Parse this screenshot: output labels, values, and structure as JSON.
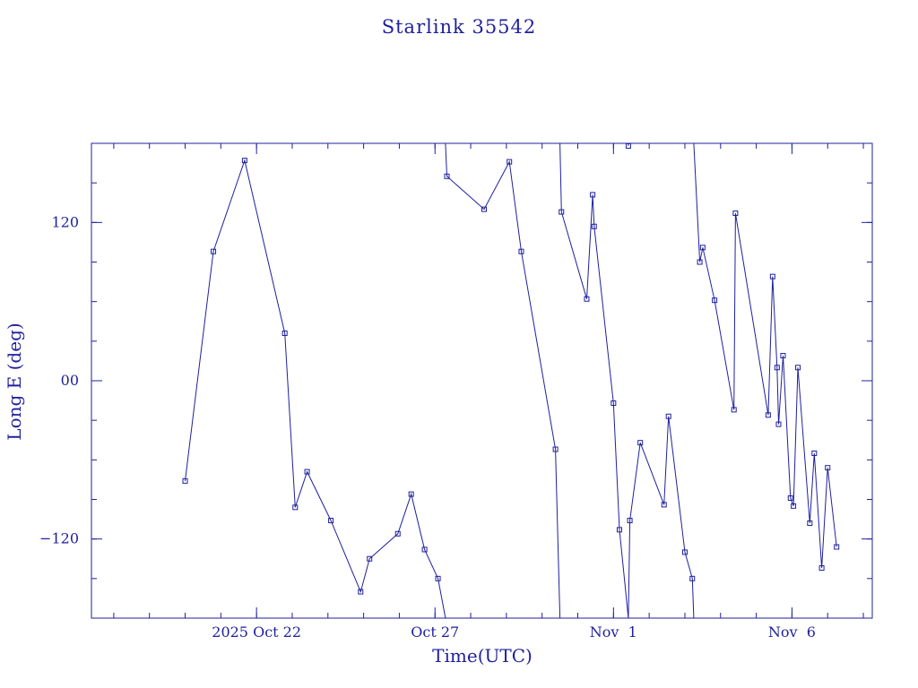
{
  "chart_data": {
    "type": "line",
    "title": "Starlink 35542",
    "xlabel": "Time(UTC)",
    "ylabel": "Long E (deg)",
    "x_ticks": [
      {
        "date": "2025-10-22",
        "label": "2025 Oct 22"
      },
      {
        "date": "2025-10-27",
        "label": "Oct 27"
      },
      {
        "date": "2025-11-01",
        "label": "Nov  1"
      },
      {
        "date": "2025-11-06",
        "label": "Nov  6"
      }
    ],
    "y_ticks": [
      {
        "value": 120,
        "label": "120"
      },
      {
        "value": 0,
        "label": "00"
      },
      {
        "value": -120,
        "label": "−120"
      }
    ],
    "xlim": [
      "2025-10-17T09:00",
      "2025-11-08T06:00"
    ],
    "ylim": [
      -180,
      180
    ],
    "grid": false,
    "series": [
      {
        "values": [
          {
            "t": "2025-10-20T00:00",
            "y": -76
          },
          {
            "t": "2025-10-20T19:00",
            "y": 98
          },
          {
            "t": "2025-10-21T16:00",
            "y": 167
          },
          {
            "t": "2025-10-22T19:00",
            "y": 36
          },
          {
            "t": "2025-10-23T02:00",
            "y": -96
          },
          {
            "t": "2025-10-23T10:00",
            "y": -69
          },
          {
            "t": "2025-10-24T02:00",
            "y": -106
          },
          {
            "t": "2025-10-24T22:00",
            "y": -160
          },
          {
            "t": "2025-10-25T04:00",
            "y": -135
          },
          {
            "t": "2025-10-25T23:00",
            "y": -116
          },
          {
            "t": "2025-10-26T08:00",
            "y": -86
          },
          {
            "t": "2025-10-26T17:00",
            "y": -128
          },
          {
            "t": "2025-10-27T02:00",
            "y": -150
          },
          {
            "t": "2025-10-27T07:00",
            "y": -180
          },
          {
            "t": "2025-10-27T07:00",
            "y": 180
          },
          {
            "t": "2025-10-27T08:00",
            "y": 155
          },
          {
            "t": "2025-10-28T09:00",
            "y": 130
          },
          {
            "t": "2025-10-29T02:00",
            "y": 166
          },
          {
            "t": "2025-10-29T10:00",
            "y": 98
          },
          {
            "t": "2025-10-30T09:00",
            "y": -52
          },
          {
            "t": "2025-10-30T12:00",
            "y": -180
          },
          {
            "t": "2025-10-30T12:00",
            "y": 180
          },
          {
            "t": "2025-10-30T13:00",
            "y": 128
          },
          {
            "t": "2025-10-31T06:00",
            "y": 62
          },
          {
            "t": "2025-10-31T10:00",
            "y": 141
          },
          {
            "t": "2025-10-31T11:00",
            "y": 117
          },
          {
            "t": "2025-11-01T00:00",
            "y": -17
          },
          {
            "t": "2025-11-01T04:00",
            "y": -113
          },
          {
            "t": "2025-11-01T10:00",
            "y": -180
          },
          {
            "t": "2025-11-01T10:00",
            "y": 180
          },
          {
            "t": "2025-11-01T10:00",
            "y": 178
          }
        ]
      },
      {
        "values": [
          {
            "t": "2025-11-01T10:00",
            "y": -180
          },
          {
            "t": "2025-11-01T11:00",
            "y": -106
          },
          {
            "t": "2025-11-01T18:00",
            "y": -47
          },
          {
            "t": "2025-11-02T10:00",
            "y": -94
          },
          {
            "t": "2025-11-02T13:00",
            "y": -27
          },
          {
            "t": "2025-11-03T00:00",
            "y": -130
          },
          {
            "t": "2025-11-03T05:00",
            "y": -150
          },
          {
            "t": "2025-11-03T06:00",
            "y": -180
          },
          {
            "t": "2025-11-03T06:00",
            "y": 180
          },
          {
            "t": "2025-11-03T10:00",
            "y": 90
          },
          {
            "t": "2025-11-03T12:00",
            "y": 101
          },
          {
            "t": "2025-11-03T20:00",
            "y": 61
          },
          {
            "t": "2025-11-04T09:00",
            "y": -22
          },
          {
            "t": "2025-11-04T10:00",
            "y": 127
          },
          {
            "t": "2025-11-05T08:00",
            "y": -26
          },
          {
            "t": "2025-11-05T11:00",
            "y": 79
          },
          {
            "t": "2025-11-05T14:00",
            "y": 10
          },
          {
            "t": "2025-11-05T15:00",
            "y": -33
          },
          {
            "t": "2025-11-05T18:00",
            "y": 19
          },
          {
            "t": "2025-11-05T23:00",
            "y": -89
          },
          {
            "t": "2025-11-06T01:00",
            "y": -95
          },
          {
            "t": "2025-11-06T04:00",
            "y": 10
          },
          {
            "t": "2025-11-06T12:00",
            "y": -108
          },
          {
            "t": "2025-11-06T15:00",
            "y": -55
          },
          {
            "t": "2025-11-06T20:00",
            "y": -142
          },
          {
            "t": "2025-11-07T00:00",
            "y": -66
          },
          {
            "t": "2025-11-07T06:00",
            "y": -126
          }
        ]
      }
    ],
    "colors": {
      "line": "#1f1f9e",
      "axes": "#1f1f9e",
      "background": "#ffffff"
    }
  }
}
